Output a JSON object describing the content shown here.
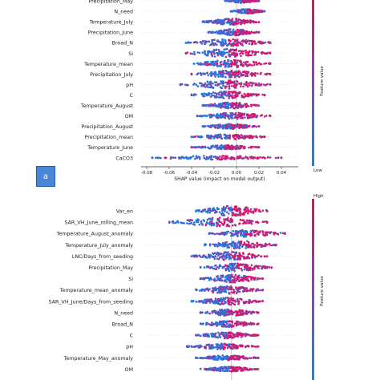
{
  "figure_label": "a",
  "chart_data": [
    {
      "type": "scatter",
      "subtype": "shap-beeswarm",
      "title": "",
      "xlabel": "SHAP value (impact on model output)",
      "ylabel": "",
      "xlim": [
        -0.085,
        0.055
      ],
      "xticks": [
        "-0.08",
        "-0.06",
        "-0.04",
        "-0.02",
        "0.00",
        "0.02",
        "0.04"
      ],
      "x_tick_values": [
        -0.08,
        -0.06,
        -0.04,
        -0.02,
        0.0,
        0.02,
        0.04
      ],
      "colorbar": {
        "label": "Feature value",
        "high": "",
        "low": "Low",
        "high_color": "#ff0052",
        "low_color": "#008bfb"
      },
      "features": [
        {
          "name": "Precipitation_May",
          "min": -0.01,
          "max": 0.02,
          "spread": 0.4
        },
        {
          "name": "N_need",
          "min": -0.005,
          "max": 0.025,
          "spread": 0.45
        },
        {
          "name": "Temperature_July",
          "min": -0.03,
          "max": 0.02,
          "spread": 0.6
        },
        {
          "name": "Precipitation_June",
          "min": -0.025,
          "max": 0.02,
          "spread": 0.6
        },
        {
          "name": "Broad_N",
          "min": -0.045,
          "max": 0.03,
          "spread": 0.7
        },
        {
          "name": "Si",
          "min": -0.045,
          "max": 0.03,
          "spread": 0.8
        },
        {
          "name": "Temperature_mean",
          "min": -0.04,
          "max": 0.03,
          "spread": 0.7
        },
        {
          "name": "Precipitation_July",
          "min": -0.04,
          "max": 0.03,
          "spread": 0.7
        },
        {
          "name": "pH",
          "min": -0.05,
          "max": 0.03,
          "spread": 0.8
        },
        {
          "name": "C",
          "min": -0.04,
          "max": 0.025,
          "spread": 0.7
        },
        {
          "name": "Temperature_August",
          "min": -0.03,
          "max": 0.02,
          "spread": 0.6
        },
        {
          "name": "OM",
          "min": -0.035,
          "max": 0.03,
          "spread": 0.6
        },
        {
          "name": "Precipitation_August",
          "min": -0.03,
          "max": 0.02,
          "spread": 0.5
        },
        {
          "name": "Precipitation_mean",
          "min": -0.04,
          "max": 0.025,
          "spread": 0.5
        },
        {
          "name": "Temperature_June",
          "min": -0.04,
          "max": 0.02,
          "spread": 0.4
        },
        {
          "name": "CaCO3",
          "min": -0.075,
          "max": 0.04,
          "spread": 0.4
        }
      ]
    },
    {
      "type": "scatter",
      "subtype": "shap-beeswarm",
      "title": "",
      "xlabel": "",
      "ylabel": "",
      "colorbar": {
        "label": "Feature value",
        "high": "High",
        "low": "",
        "high_color": "#ff0052",
        "low_color": "#008bfb"
      },
      "features": [
        {
          "name": "Var_en",
          "min": -0.4,
          "max": 0.4,
          "spread": 0.9
        },
        {
          "name": "SAR_VH_June_rolling_mean",
          "min": -0.7,
          "max": 0.4,
          "spread": 0.8
        },
        {
          "name": "Temperature_August_anomaly",
          "min": -0.25,
          "max": 0.6,
          "spread": 0.6
        },
        {
          "name": "Temperature_July_anomaly",
          "min": -0.3,
          "max": 0.5,
          "spread": 0.7
        },
        {
          "name": "LNC/Days_from_seeding",
          "min": -0.45,
          "max": 0.4,
          "spread": 0.75
        },
        {
          "name": "Precipitation_May",
          "min": -0.35,
          "max": 0.45,
          "spread": 0.7
        },
        {
          "name": "Si",
          "min": -0.35,
          "max": 0.35,
          "spread": 0.7
        },
        {
          "name": "Temperature_mean_anomaly",
          "min": -0.4,
          "max": 0.35,
          "spread": 0.7
        },
        {
          "name": "SAR_VH_June/Days_from_seeding",
          "min": -0.45,
          "max": 0.35,
          "spread": 0.65
        },
        {
          "name": "N_need",
          "min": -0.35,
          "max": 0.3,
          "spread": 0.6
        },
        {
          "name": "Broad_N",
          "min": -0.35,
          "max": 0.3,
          "spread": 0.55
        },
        {
          "name": "C",
          "min": -0.4,
          "max": 0.3,
          "spread": 0.55
        },
        {
          "name": "pH",
          "min": -0.5,
          "max": 0.3,
          "spread": 0.5
        },
        {
          "name": "Temperature_May_anomaly",
          "min": -0.4,
          "max": 0.3,
          "spread": 0.45
        },
        {
          "name": "OM",
          "min": -0.35,
          "max": 0.3,
          "spread": 0.45
        }
      ]
    }
  ]
}
